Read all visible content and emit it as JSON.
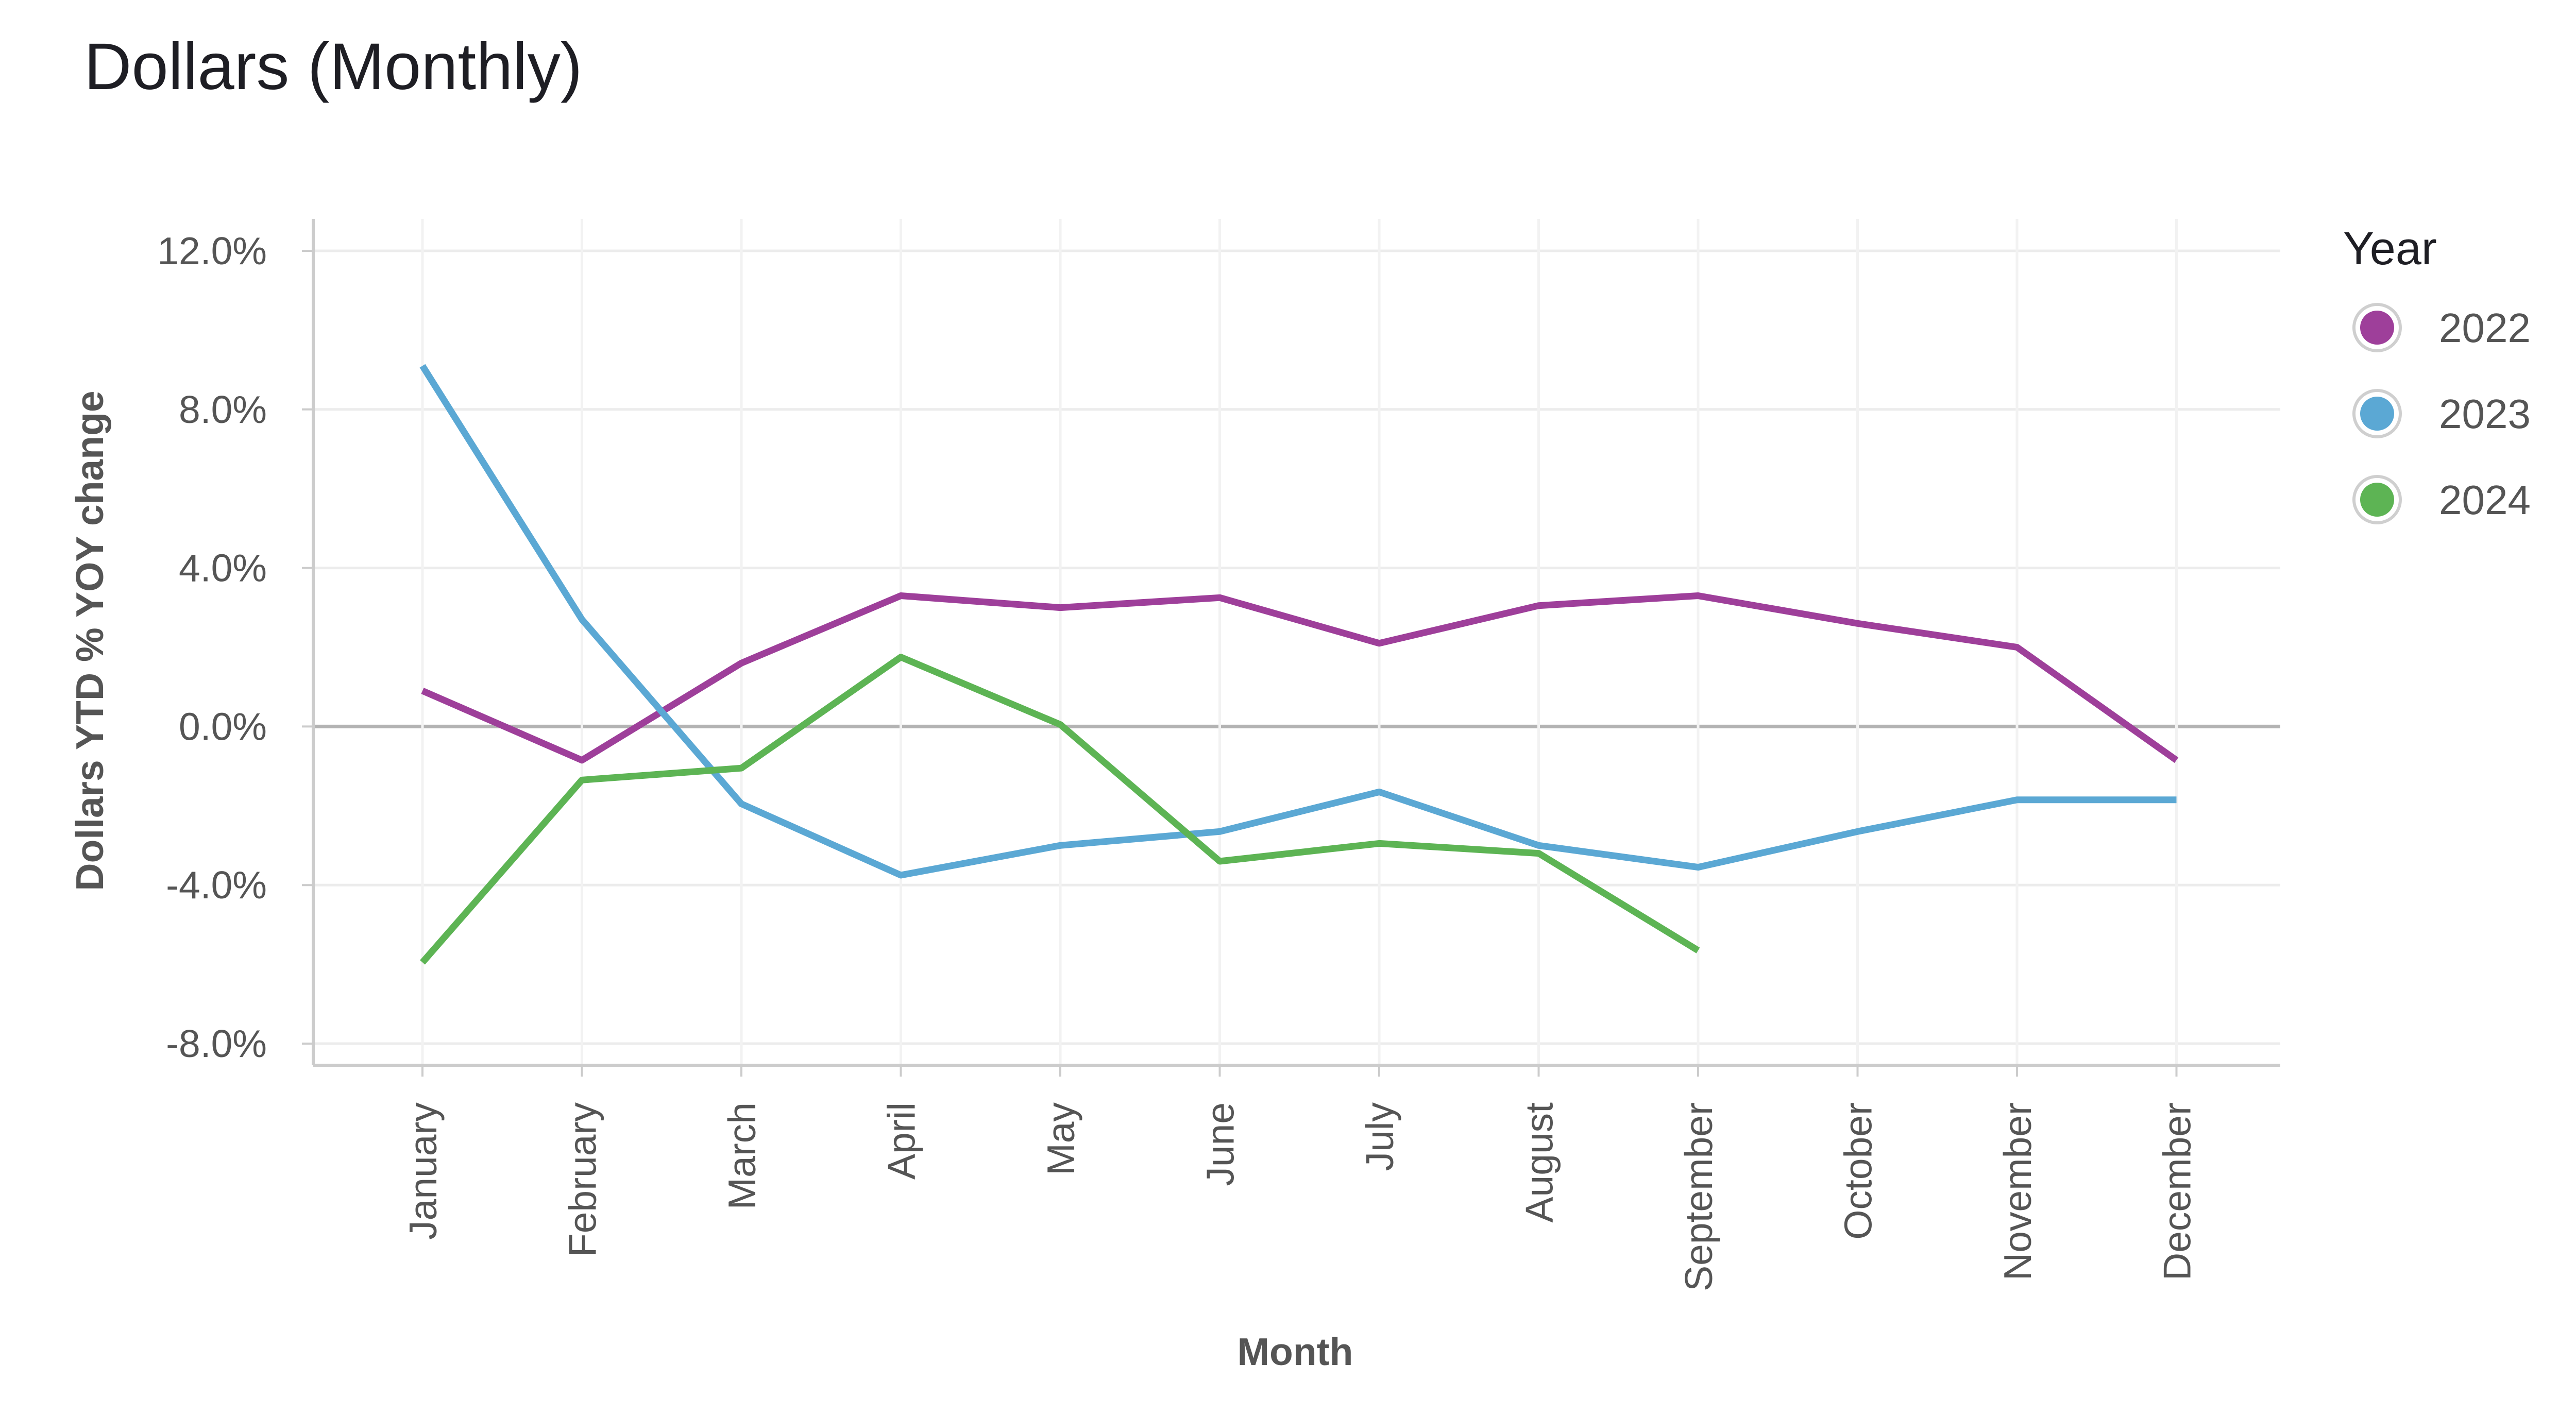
{
  "chart_data": {
    "type": "line",
    "title": "Dollars (Monthly)",
    "xlabel": "Month",
    "ylabel": "Dollars YTD % YOY change",
    "categories": [
      "January",
      "February",
      "March",
      "April",
      "May",
      "June",
      "July",
      "August",
      "September",
      "October",
      "November",
      "December"
    ],
    "ylim": [
      -0.08,
      0.12
    ],
    "yticks": [
      -0.08,
      -0.04,
      0.0,
      0.04,
      0.08,
      0.12
    ],
    "ytick_labels": [
      "-8.0%",
      "-4.0%",
      "0.0%",
      "4.0%",
      "8.0%",
      "12.0%"
    ],
    "grid": true,
    "legend": {
      "title": "Year",
      "placement": "right"
    },
    "series": [
      {
        "name": "2022",
        "color": "#9e3f9a",
        "values": [
          0.009,
          -0.0085,
          0.016,
          0.033,
          0.03,
          0.0325,
          0.021,
          0.0305,
          0.033,
          0.026,
          0.02,
          -0.0085
        ]
      },
      {
        "name": "2023",
        "color": "#5ba8d4",
        "values": [
          0.091,
          0.027,
          -0.0195,
          -0.0375,
          -0.03,
          -0.0265,
          -0.0165,
          -0.03,
          -0.0355,
          -0.0265,
          -0.0185,
          -0.0185
        ]
      },
      {
        "name": "2024",
        "color": "#5db454",
        "values": [
          -0.0595,
          -0.0135,
          -0.0105,
          0.0175,
          0.0005,
          -0.034,
          -0.0295,
          -0.032,
          -0.0565,
          null,
          null,
          null
        ]
      }
    ]
  }
}
